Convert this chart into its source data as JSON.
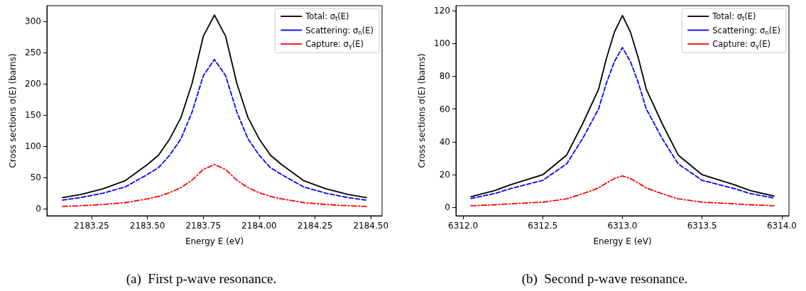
{
  "chart_data": [
    {
      "type": "line",
      "xlabel": "Energy E (eV)",
      "ylabel": "Cross sections σ(E) (barns)",
      "annotations": [
        "(a)  First p-wave resonance."
      ],
      "x": [
        2183.12,
        2183.2,
        2183.3,
        2183.4,
        2183.5,
        2183.55,
        2183.6,
        2183.65,
        2183.7,
        2183.75,
        2183.8,
        2183.85,
        2183.9,
        2183.95,
        2184.0,
        2184.05,
        2184.1,
        2184.2,
        2184.3,
        2184.4,
        2184.48
      ],
      "series": [
        {
          "name": "Total: σ$_{t}$(E)",
          "color": "#000000",
          "line_style": "solid",
          "values": [
            18,
            23,
            32,
            45,
            71,
            86,
            112,
            146,
            201,
            276,
            310,
            276,
            201,
            146,
            112,
            86,
            71,
            45,
            32,
            23,
            18
          ]
        },
        {
          "name": "Scattering: σ$_{n}$(E)",
          "color": "#0000ff",
          "line_style": "dashed",
          "values": [
            14,
            18,
            25,
            35,
            55,
            66,
            86,
            112,
            155,
            213,
            239,
            213,
            155,
            112,
            86,
            66,
            55,
            35,
            25,
            18,
            14
          ]
        },
        {
          "name": "Capture: σ$_{γ}$(E)",
          "color": "#ff0000",
          "line_style": "dashdot",
          "values": [
            4,
            5,
            7,
            10,
            16,
            20,
            26,
            34,
            46,
            63,
            71,
            63,
            46,
            34,
            26,
            20,
            16,
            10,
            7,
            5,
            4
          ]
        }
      ],
      "xlim": [
        2183.05,
        2184.55
      ],
      "xticks": [
        2183.25,
        {
          "value": 2183.5,
          "label": "2183.50"
        },
        2183.75,
        {
          "value": 2184,
          "label": "2184.00"
        },
        2184.25,
        {
          "value": 2184.5,
          "label": "2184.50"
        }
      ],
      "ylim": [
        -11,
        325
      ],
      "yticks": [
        0,
        50,
        100,
        150,
        200,
        250,
        300
      ],
      "grid": false,
      "legend": "top right",
      "marker": "none"
    },
    {
      "type": "line",
      "xlabel": "Energy E (eV)",
      "ylabel": "Cross sections σ(E) (barns)",
      "annotations": [
        "(b)  Second p-wave resonance."
      ],
      "x": [
        6312.05,
        6312.2,
        6312.3,
        6312.5,
        6312.65,
        6312.75,
        6312.85,
        6312.9,
        6312.95,
        6313.0,
        6313.05,
        6313.1,
        6313.15,
        6313.25,
        6313.35,
        6313.5,
        6313.7,
        6313.8,
        6313.95
      ],
      "series": [
        {
          "name": "Total: σ$_{t}$(E)",
          "color": "#000000",
          "line_style": "solid",
          "values": [
            6.6,
            10.4,
            14,
            20,
            32,
            51,
            72,
            91,
            107,
            117,
            107,
            91,
            72,
            51,
            32,
            20,
            14,
            10.4,
            7
          ]
        },
        {
          "name": "Scattering: σ$_{n}$(E)",
          "color": "#0000ff",
          "line_style": "dashed",
          "values": [
            5.5,
            8.6,
            11.6,
            16.6,
            26.6,
            42,
            60,
            76,
            89,
            97.5,
            89,
            76,
            60,
            42,
            26.6,
            16.6,
            11.6,
            8.6,
            5.8
          ]
        },
        {
          "name": "Capture: σ$_{γ}$(E)",
          "color": "#ff0000",
          "line_style": "dashdot",
          "values": [
            1.1,
            1.7,
            2.3,
            3.3,
            5.3,
            8.4,
            11.9,
            15,
            17.7,
            19.3,
            17.7,
            15,
            11.9,
            8.4,
            5.3,
            3.3,
            2.3,
            1.7,
            1.1
          ]
        }
      ],
      "xlim": [
        6311.955,
        6314.045
      ],
      "xticks": [
        {
          "value": 6312,
          "label": "6312.0"
        },
        6312.5,
        {
          "value": 6313,
          "label": "6313.0"
        },
        6313.5,
        {
          "value": 6314,
          "label": "6314.0"
        }
      ],
      "ylim": [
        -5,
        123
      ],
      "yticks": [
        0,
        20,
        40,
        60,
        80,
        100,
        120
      ],
      "grid": false,
      "legend": "top right",
      "marker": "none"
    }
  ]
}
